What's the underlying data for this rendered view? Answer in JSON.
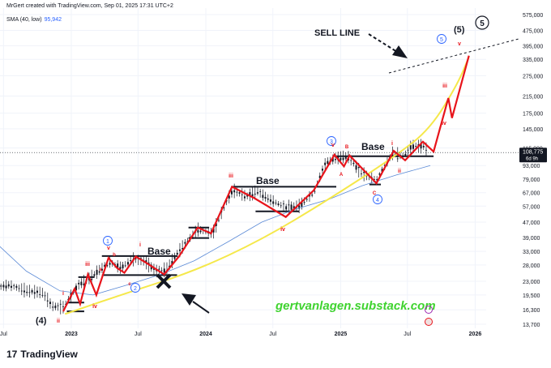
{
  "header": {
    "created_by": "MrGert created with TradingView.com, Sep 01, 2025 17:31 UTC+2"
  },
  "indicator": {
    "label": "SMA (40, low)",
    "value": "95,942"
  },
  "chart_data": {
    "type": "line",
    "scale": "log",
    "y_ticks": [
      "575,000",
      "475,000",
      "395,000",
      "335,000",
      "275,000",
      "215,000",
      "175,000",
      "145,000",
      "115,000",
      "93,000",
      "79,000",
      "67,000",
      "57,000",
      "47,000",
      "39,000",
      "33,000",
      "28,000",
      "23,000",
      "19,500",
      "16,300",
      "13,700"
    ],
    "y_tick_values": [
      575000,
      475000,
      395000,
      335000,
      275000,
      215000,
      175000,
      145000,
      115000,
      93000,
      79000,
      67000,
      57000,
      47000,
      39000,
      33000,
      28000,
      23000,
      19500,
      16300,
      13700
    ],
    "x_ticks": [
      "Jul",
      "2023",
      "Jul",
      "2024",
      "Jul",
      "2025",
      "Jul",
      "2026"
    ],
    "x_tick_dates": [
      "2022-07-01",
      "2023-01-01",
      "2023-07-01",
      "2024-01-01",
      "2024-07-01",
      "2025-01-01",
      "2025-07-01",
      "2026-01-01"
    ],
    "price_label": {
      "value": "108,775",
      "countdown": "6d 9h"
    },
    "sma_series": [
      {
        "date": "2022-06-01",
        "value": 38000
      },
      {
        "date": "2022-09-01",
        "value": 26000
      },
      {
        "date": "2022-12-01",
        "value": 20500
      },
      {
        "date": "2023-03-01",
        "value": 19500
      },
      {
        "date": "2023-06-01",
        "value": 22000
      },
      {
        "date": "2023-09-01",
        "value": 25000
      },
      {
        "date": "2023-12-01",
        "value": 29500
      },
      {
        "date": "2024-03-01",
        "value": 37000
      },
      {
        "date": "2024-06-01",
        "value": 47000
      },
      {
        "date": "2024-09-01",
        "value": 55000
      },
      {
        "date": "2024-12-01",
        "value": 62000
      },
      {
        "date": "2025-03-01",
        "value": 73000
      },
      {
        "date": "2025-06-01",
        "value": 83000
      },
      {
        "date": "2025-09-01",
        "value": 93000
      }
    ],
    "projection_curve": [
      {
        "date": "2022-12-15",
        "value": 15500
      },
      {
        "date": "2023-06-01",
        "value": 20000
      },
      {
        "date": "2023-12-01",
        "value": 26000
      },
      {
        "date": "2024-06-01",
        "value": 38000
      },
      {
        "date": "2024-12-01",
        "value": 62000
      },
      {
        "date": "2025-06-01",
        "value": 105000
      },
      {
        "date": "2025-09-01",
        "value": 145000
      },
      {
        "date": "2025-11-15",
        "value": 250000
      },
      {
        "date": "2025-12-15",
        "value": 345000
      }
    ],
    "wave_path": [
      {
        "date": "2022-12-10",
        "value": 16000
      },
      {
        "date": "2023-01-10",
        "value": 21000
      },
      {
        "date": "2023-01-25",
        "value": 17500
      },
      {
        "date": "2023-02-15",
        "value": 25000
      },
      {
        "date": "2023-03-10",
        "value": 19500
      },
      {
        "date": "2023-04-12",
        "value": 30500
      },
      {
        "date": "2023-05-05",
        "value": 27000
      },
      {
        "date": "2023-05-25",
        "value": 25500
      },
      {
        "date": "2023-06-25",
        "value": 31000
      },
      {
        "date": "2023-07-20",
        "value": 29000
      },
      {
        "date": "2023-09-10",
        "value": 25000
      },
      {
        "date": "2023-10-20",
        "value": 31000
      },
      {
        "date": "2023-12-10",
        "value": 44000
      },
      {
        "date": "2024-01-15",
        "value": 41000
      },
      {
        "date": "2024-03-12",
        "value": 72000
      },
      {
        "date": "2024-05-10",
        "value": 63000
      },
      {
        "date": "2024-08-05",
        "value": 50000
      },
      {
        "date": "2024-10-20",
        "value": 69000
      },
      {
        "date": "2024-12-15",
        "value": 106000
      },
      {
        "date": "2025-01-10",
        "value": 92000
      },
      {
        "date": "2025-01-25",
        "value": 105000
      },
      {
        "date": "2025-04-08",
        "value": 75000
      },
      {
        "date": "2025-05-25",
        "value": 111000
      },
      {
        "date": "2025-06-25",
        "value": 99000
      },
      {
        "date": "2025-08-12",
        "value": 124000
      },
      {
        "date": "2025-09-10",
        "value": 110000
      },
      {
        "date": "2025-10-20",
        "value": 210000
      },
      {
        "date": "2025-10-30",
        "value": 165000
      },
      {
        "date": "2025-12-15",
        "value": 350000
      }
    ],
    "annotations": {
      "sell_line": "SELL LINE",
      "base_1": "Base",
      "base_2": "Base",
      "base_3": "Base",
      "watermark": "gertvanlagen.substack.com",
      "wave_4_major": "(4)",
      "wave_5_major": "(5)",
      "wave_5_circle": "5",
      "c1": "1",
      "c2": "2",
      "c3": "3",
      "c4": "4",
      "c5": "5",
      "i": "i",
      "ii": "ii",
      "iii": "iii",
      "iv": "iv",
      "v": "v",
      "a": "a",
      "b": "b",
      "c": "c",
      "A": "A",
      "B": "B",
      "C": "C"
    }
  },
  "footer": {
    "brand": "TradingView"
  },
  "colors": {
    "wave": "#e8141b",
    "projection": "#f5e84a",
    "sma": "#5b8ad6",
    "level": "#131722",
    "watermark": "#3fd32f",
    "circle_blue": "#2962ff"
  }
}
